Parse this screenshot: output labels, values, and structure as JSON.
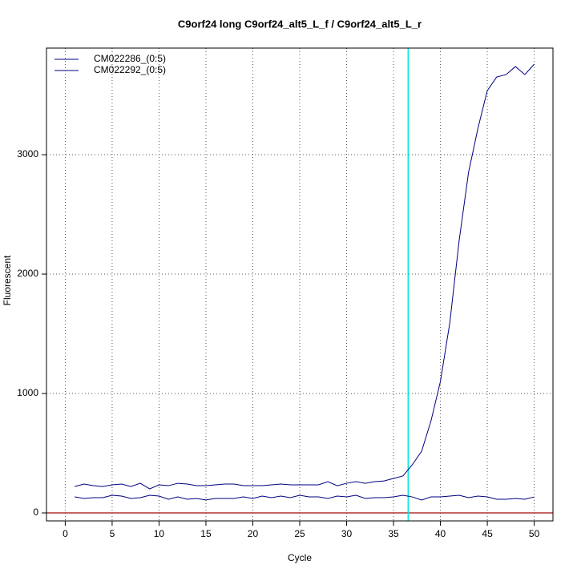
{
  "chart_data": {
    "type": "line",
    "title": "C9orf24 long C9orf24_alt5_L_f / C9orf24_alt5_L_r",
    "x_label": "Cycle",
    "y_label": "Fluorescent",
    "x": [
      1,
      2,
      3,
      4,
      5,
      6,
      7,
      8,
      9,
      10,
      11,
      12,
      13,
      14,
      15,
      16,
      17,
      18,
      19,
      20,
      21,
      22,
      23,
      24,
      25,
      26,
      27,
      28,
      29,
      30,
      31,
      32,
      33,
      34,
      35,
      36,
      37,
      38,
      39,
      40,
      41,
      42,
      43,
      44,
      45,
      46,
      47,
      48,
      49,
      50
    ],
    "series": [
      {
        "name": "CM022286_(0:5)",
        "color": "#000080",
        "values": [
          221,
          242,
          228,
          221,
          235,
          242,
          221,
          248,
          201,
          235,
          228,
          248,
          242,
          228,
          228,
          235,
          242,
          242,
          228,
          228,
          228,
          235,
          242,
          235,
          235,
          235,
          235,
          262,
          228,
          248,
          262,
          248,
          262,
          268,
          289,
          309,
          403,
          517,
          772,
          1101,
          1591,
          2282,
          2852,
          3221,
          3537,
          3651,
          3671,
          3738,
          3671,
          3758
        ]
      },
      {
        "name": "CM022292_(0:5)",
        "color": "#000080",
        "values": [
          134,
          121,
          128,
          128,
          148,
          141,
          121,
          128,
          148,
          141,
          114,
          134,
          114,
          121,
          108,
          121,
          121,
          121,
          134,
          121,
          141,
          128,
          141,
          128,
          148,
          134,
          134,
          121,
          141,
          134,
          148,
          121,
          128,
          128,
          134,
          148,
          134,
          108,
          134,
          134,
          141,
          148,
          128,
          141,
          134,
          114,
          114,
          121,
          114,
          134
        ]
      }
    ],
    "xlim": [
      -2,
      52
    ],
    "ylim": [
      -67,
      3893
    ],
    "xticks": [
      0,
      5,
      10,
      15,
      20,
      25,
      30,
      35,
      40,
      45,
      50
    ],
    "yticks": [
      0,
      1000,
      2000,
      3000
    ],
    "grid": true,
    "threshold_cycle": 36.56,
    "threshold_color": "#00e5e5",
    "baseline": 0,
    "baseline_color": "#b03030",
    "legend": "top-left"
  }
}
